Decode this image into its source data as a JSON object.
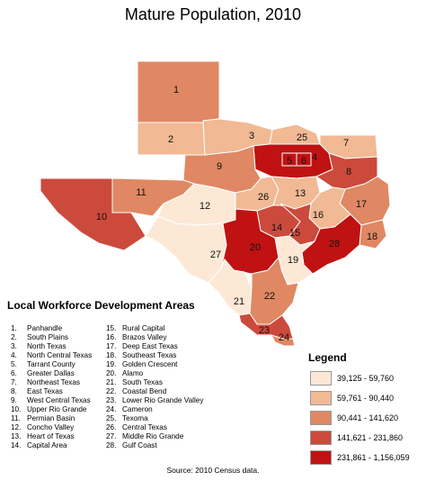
{
  "title": "Mature Population, 2010",
  "list_heading": "Local Workforce Development Areas",
  "areas": [
    {
      "num": "1.",
      "name": "Panhandle"
    },
    {
      "num": "2.",
      "name": "South Plains"
    },
    {
      "num": "3.",
      "name": "North Texas"
    },
    {
      "num": "4.",
      "name": "North Central Texas"
    },
    {
      "num": "5.",
      "name": "Tarrant County"
    },
    {
      "num": "6.",
      "name": "Greater Dallas"
    },
    {
      "num": "7.",
      "name": "Northeast Texas"
    },
    {
      "num": "8.",
      "name": "East Texas"
    },
    {
      "num": "9.",
      "name": "West Central Texas"
    },
    {
      "num": "10.",
      "name": "Upper Rio Grande"
    },
    {
      "num": "11.",
      "name": "Permian Basin"
    },
    {
      "num": "12.",
      "name": "Concho Valley"
    },
    {
      "num": "13.",
      "name": "Heart of Texas"
    },
    {
      "num": "14.",
      "name": "Capital Area"
    },
    {
      "num": "15.",
      "name": "Rural Capital"
    },
    {
      "num": "16.",
      "name": "Brazos Valley"
    },
    {
      "num": "17.",
      "name": "Deep East Texas"
    },
    {
      "num": "18.",
      "name": "Southeast Texas"
    },
    {
      "num": "19.",
      "name": "Golden Crescent"
    },
    {
      "num": "20.",
      "name": "Alamo"
    },
    {
      "num": "21.",
      "name": "South Texas"
    },
    {
      "num": "22.",
      "name": "Coastal Bend"
    },
    {
      "num": "23.",
      "name": "Lower Rio Grande Valley"
    },
    {
      "num": "24.",
      "name": "Cameron"
    },
    {
      "num": "25.",
      "name": "Texoma"
    },
    {
      "num": "26.",
      "name": "Central Texas"
    },
    {
      "num": "27.",
      "name": "Middle Rio Grande"
    },
    {
      "num": "28.",
      "name": "Gulf Coast"
    }
  ],
  "legend": {
    "title": "Legend",
    "classes": [
      {
        "label": "39,125 - 59,760",
        "color": "#fde8d6"
      },
      {
        "label": "59,761 - 90,440",
        "color": "#f1b994"
      },
      {
        "label": "90,441 - 141,620",
        "color": "#df8863"
      },
      {
        "label": "141,621 - 231,860",
        "color": "#cc4a3c"
      },
      {
        "label": "231,861 - 1,156,059",
        "color": "#c01212"
      }
    ]
  },
  "region_classes": {
    "1": 3,
    "2": 2,
    "3": 2,
    "4": 5,
    "5": 5,
    "6": 5,
    "7": 2,
    "8": 4,
    "9": 3,
    "10": 4,
    "11": 3,
    "12": 1,
    "13": 2,
    "14": 4,
    "15": 4,
    "16": 2,
    "17": 3,
    "18": 3,
    "19": 1,
    "20": 5,
    "21": 1,
    "22": 3,
    "23": 4,
    "24": 3,
    "25": 2,
    "26": 2,
    "27": 1,
    "28": 5
  },
  "source": "Source: 2010 Census data."
}
